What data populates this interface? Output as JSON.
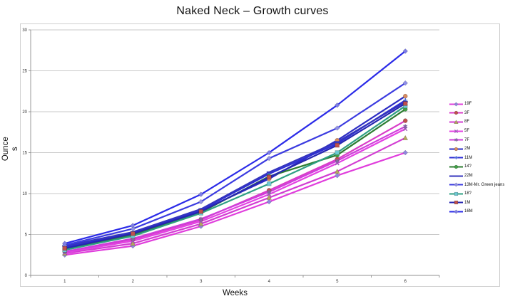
{
  "chart_data": {
    "type": "line",
    "title": "Naked Neck – Growth curves",
    "xlabel": "Weeks",
    "ylabel": "Ounces",
    "categories": [
      1,
      2,
      3,
      4,
      5,
      6
    ],
    "ylim": [
      0,
      30
    ],
    "ytick_interval": 5,
    "yticks": [
      0,
      5,
      10,
      15,
      20,
      25,
      30
    ],
    "grid": true,
    "legend_position": "right",
    "series": [
      {
        "name": "19F",
        "line_color": "#e03ddc",
        "marker": "diamond",
        "marker_color": "#8f86dd",
        "values": [
          2.5,
          3.6,
          6.0,
          9.0,
          12.2,
          15.0
        ]
      },
      {
        "name": "3F",
        "line_color": "#d93cc8",
        "marker": "circle",
        "marker_color": "#c0504d",
        "values": [
          2.9,
          4.4,
          6.8,
          10.4,
          14.2,
          18.9
        ]
      },
      {
        "name": "8F",
        "line_color": "#d23cd2",
        "marker": "triangle",
        "marker_color": "#b5a75c",
        "values": [
          2.7,
          3.9,
          6.3,
          9.5,
          12.7,
          16.8
        ]
      },
      {
        "name": "5F",
        "line_color": "#e341e3",
        "marker": "x",
        "marker_color": "#9b59b6",
        "values": [
          2.8,
          4.2,
          6.6,
          9.9,
          13.7,
          17.9
        ]
      },
      {
        "name": "7F",
        "line_color": "#cf3ddb",
        "marker": "asterisk",
        "marker_color": "#8064a2",
        "values": [
          2.9,
          4.5,
          6.9,
          10.2,
          14.0,
          18.2
        ]
      },
      {
        "name": "2M",
        "line_color": "#2c2cc4",
        "marker": "circle",
        "marker_color": "#d98b5f",
        "values": [
          3.4,
          5.0,
          7.9,
          11.8,
          16.5,
          21.9
        ]
      },
      {
        "name": "11M",
        "line_color": "#2e2ed6",
        "marker": "plus",
        "marker_color": "#4a6bd4",
        "values": [
          3.5,
          5.2,
          8.0,
          12.4,
          16.1,
          21.4
        ]
      },
      {
        "name": "14?",
        "line_color": "#2e7d32",
        "marker": "circle",
        "marker_color": "#3fa045",
        "values": [
          3.2,
          4.9,
          7.7,
          12.1,
          14.7,
          20.3
        ]
      },
      {
        "name": "22M",
        "line_color": "#3434bd",
        "marker": "dash",
        "marker_color": "#3434bd",
        "values": [
          3.6,
          5.3,
          8.1,
          12.6,
          16.3,
          21.2
        ]
      },
      {
        "name": "13M-Mr. Green jeans",
        "line_color": "#3b3be0",
        "marker": "diamond",
        "marker_color": "#9090e8",
        "values": [
          3.7,
          5.7,
          9.0,
          14.3,
          18.0,
          23.5
        ]
      },
      {
        "name": "18?",
        "line_color": "#2fa083",
        "marker": "square",
        "marker_color": "#6cc9d4",
        "values": [
          3.1,
          4.8,
          7.6,
          11.2,
          15.0,
          20.7
        ]
      },
      {
        "name": "1M",
        "line_color": "#2626b0",
        "marker": "square",
        "marker_color": "#c0504d",
        "values": [
          3.3,
          5.1,
          7.8,
          12.0,
          15.9,
          21.0
        ]
      },
      {
        "name": "16M",
        "line_color": "#2b2be8",
        "marker": "diamond",
        "marker_color": "#7d7de8",
        "values": [
          3.9,
          6.1,
          9.9,
          15.0,
          20.8,
          27.4
        ]
      }
    ]
  }
}
